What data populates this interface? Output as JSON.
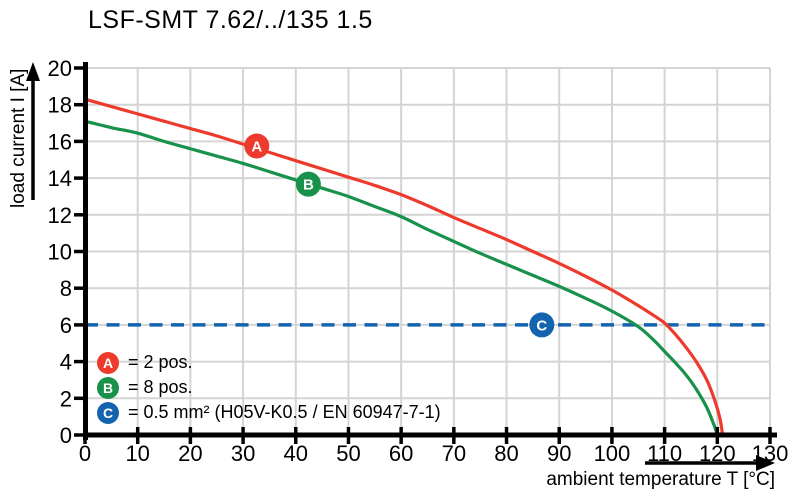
{
  "title": "LSF-SMT 7.62/../135 1.5",
  "colors": {
    "curve_a_red": "#ee3a2c",
    "curve_b_green": "#18914a",
    "line_c_blue": "#1463ae",
    "grid": "#d4d4d4",
    "axis": "#000000"
  },
  "chart_data": {
    "type": "line",
    "title": "LSF-SMT 7.62/../135 1.5",
    "xlabel": "ambient temperature T [°C]",
    "ylabel": "load current I [A]",
    "xlim": [
      0,
      130
    ],
    "ylim": [
      0,
      20
    ],
    "x_ticks": [
      0,
      10,
      20,
      30,
      40,
      50,
      60,
      70,
      80,
      90,
      100,
      110,
      120,
      130
    ],
    "y_ticks": [
      0,
      2,
      4,
      6,
      8,
      10,
      12,
      14,
      16,
      18,
      20
    ],
    "grid": true,
    "legend_position": "lower-left",
    "series": [
      {
        "name": "A",
        "label": "= 2 pos.",
        "color": "#ee3a2c",
        "style": "solid",
        "marker": {
          "x": 32.6,
          "y": 15.75,
          "letter": "A"
        },
        "points": [
          [
            0,
            18.3
          ],
          [
            5,
            17.9
          ],
          [
            10,
            17.5
          ],
          [
            15,
            17.1
          ],
          [
            20,
            16.7
          ],
          [
            25,
            16.3
          ],
          [
            30,
            15.85
          ],
          [
            35,
            15.4
          ],
          [
            40,
            14.95
          ],
          [
            45,
            14.5
          ],
          [
            50,
            14.05
          ],
          [
            55,
            13.6
          ],
          [
            60,
            13.1
          ],
          [
            65,
            12.5
          ],
          [
            70,
            11.85
          ],
          [
            75,
            11.25
          ],
          [
            80,
            10.65
          ],
          [
            85,
            10.0
          ],
          [
            90,
            9.35
          ],
          [
            95,
            8.65
          ],
          [
            100,
            7.9
          ],
          [
            105,
            7.05
          ],
          [
            108,
            6.5
          ],
          [
            110,
            6.1
          ],
          [
            112,
            5.5
          ],
          [
            114,
            4.8
          ],
          [
            116,
            4.0
          ],
          [
            118,
            3.0
          ],
          [
            119.5,
            1.9
          ],
          [
            120.5,
            0.9
          ],
          [
            121,
            0
          ]
        ]
      },
      {
        "name": "B",
        "label": "= 8 pos.",
        "color": "#18914a",
        "style": "solid",
        "marker": {
          "x": 42.4,
          "y": 13.67,
          "letter": "B"
        },
        "points": [
          [
            0,
            17.1
          ],
          [
            5,
            16.75
          ],
          [
            10,
            16.45
          ],
          [
            15,
            16.0
          ],
          [
            20,
            15.6
          ],
          [
            25,
            15.2
          ],
          [
            30,
            14.8
          ],
          [
            35,
            14.35
          ],
          [
            40,
            13.9
          ],
          [
            45,
            13.45
          ],
          [
            50,
            13.0
          ],
          [
            55,
            12.45
          ],
          [
            60,
            11.9
          ],
          [
            65,
            11.2
          ],
          [
            70,
            10.55
          ],
          [
            75,
            9.9
          ],
          [
            80,
            9.3
          ],
          [
            85,
            8.7
          ],
          [
            90,
            8.1
          ],
          [
            95,
            7.45
          ],
          [
            100,
            6.75
          ],
          [
            105,
            5.9
          ],
          [
            108,
            5.15
          ],
          [
            110,
            4.55
          ],
          [
            112,
            3.95
          ],
          [
            114,
            3.3
          ],
          [
            116,
            2.5
          ],
          [
            118,
            1.5
          ],
          [
            119.3,
            0.6
          ],
          [
            120,
            0
          ]
        ]
      },
      {
        "name": "C",
        "label": "= 0.5 mm² (H05V-K0.5 / EN 60947-7-1)",
        "color": "#1463ae",
        "style": "dashed",
        "marker": {
          "x": 86.7,
          "y": 6,
          "letter": "C"
        },
        "points": [
          [
            0,
            6
          ],
          [
            130,
            6
          ]
        ]
      }
    ]
  },
  "legend": {
    "items": [
      {
        "letter": "A",
        "text": "= 2 pos.",
        "color": "#ee3a2c"
      },
      {
        "letter": "B",
        "text": "= 8 pos.",
        "color": "#18914a"
      },
      {
        "letter": "C",
        "text": "= 0.5 mm² (H05V-K0.5 / EN 60947-7-1)",
        "color": "#1463ae"
      }
    ]
  }
}
